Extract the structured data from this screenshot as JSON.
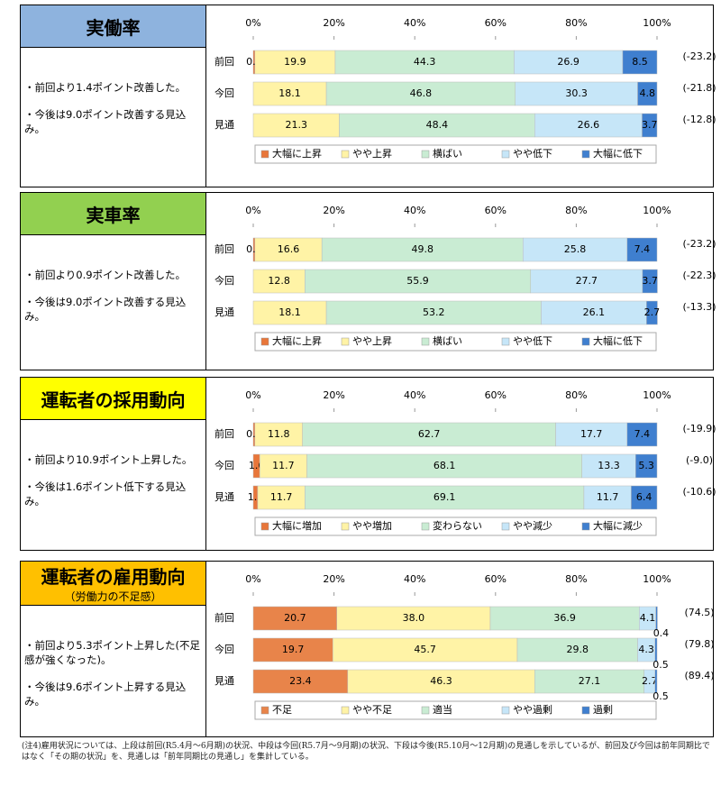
{
  "chart_data": [
    {
      "type": "bar",
      "orientation": "horizontal",
      "stacked": true,
      "title": "実働率",
      "header_color": "#8eb3de",
      "annotations": [
        "・前回より1.4ポイント改善した。",
        "・今後は9.0ポイント改善する見込み。"
      ],
      "categories": [
        "前回",
        "今回",
        "見通"
      ],
      "series": [
        {
          "name": "大幅に上昇",
          "color": "#e8763a",
          "values": [
            0.4,
            null,
            null
          ]
        },
        {
          "name": "やや上昇",
          "color": "#fff3a6",
          "values": [
            19.9,
            18.1,
            21.3
          ]
        },
        {
          "name": "横ばい",
          "color": "#c9ecd3",
          "values": [
            44.3,
            46.8,
            48.4
          ]
        },
        {
          "name": "やや低下",
          "color": "#c6e6f8",
          "values": [
            26.9,
            30.3,
            26.6
          ]
        },
        {
          "name": "大幅に低下",
          "color": "#3f7fcf",
          "values": [
            8.5,
            4.8,
            3.7
          ]
        }
      ],
      "di": {
        "values": [
          -23.2,
          -21.8,
          -12.8
        ],
        "value_labels": [
          "(-23.2)",
          "(-21.8)",
          "(-12.8)"
        ]
      },
      "xlim": [
        0,
        100
      ],
      "xticks": [
        {
          "value": 0,
          "label": "0%"
        },
        {
          "value": 20,
          "label": "20%"
        },
        {
          "value": 40,
          "label": "40%"
        },
        {
          "value": 60,
          "label": "60%"
        },
        {
          "value": 80,
          "label": "80%"
        },
        {
          "value": 100,
          "label": "100%"
        }
      ],
      "legend": "bottom"
    },
    {
      "type": "bar",
      "orientation": "horizontal",
      "stacked": true,
      "title": "実車率",
      "header_color": "#92d050",
      "annotations": [
        "・前回より0.9ポイント改善した。",
        "・今後は9.0ポイント改善する見込み。"
      ],
      "categories": [
        "前回",
        "今回",
        "見通"
      ],
      "series": [
        {
          "name": "大幅に上昇",
          "color": "#e8763a",
          "values": [
            0.4,
            null,
            null
          ]
        },
        {
          "name": "やや上昇",
          "color": "#fff3a6",
          "values": [
            16.6,
            12.8,
            18.1
          ]
        },
        {
          "name": "横ばい",
          "color": "#c9ecd3",
          "values": [
            49.8,
            55.9,
            53.2
          ]
        },
        {
          "name": "やや低下",
          "color": "#c6e6f8",
          "values": [
            25.8,
            27.7,
            26.1
          ]
        },
        {
          "name": "大幅に低下",
          "color": "#3f7fcf",
          "values": [
            7.4,
            3.7,
            2.7
          ]
        }
      ],
      "di": {
        "values": [
          -23.2,
          -22.3,
          -13.3
        ],
        "value_labels": [
          "(-23.2)",
          "(-22.3)",
          "(-13.3)"
        ]
      },
      "xlim": [
        0,
        100
      ],
      "xticks": [
        {
          "value": 0,
          "label": "0%"
        },
        {
          "value": 20,
          "label": "20%"
        },
        {
          "value": 40,
          "label": "40%"
        },
        {
          "value": 60,
          "label": "60%"
        },
        {
          "value": 80,
          "label": "80%"
        },
        {
          "value": 100,
          "label": "100%"
        }
      ],
      "legend": "bottom"
    },
    {
      "type": "bar",
      "orientation": "horizontal",
      "stacked": true,
      "title": "運転者の採用動向",
      "header_color": "#ffff00",
      "annotations": [
        "・前回より10.9ポイント上昇した。",
        "・今後は1.6ポイント低下する見込み。"
      ],
      "categories": [
        "前回",
        "今回",
        "見通"
      ],
      "series": [
        {
          "name": "大幅に増加",
          "color": "#e8763a",
          "values": [
            0.4,
            1.6,
            1.1
          ]
        },
        {
          "name": "やや増加",
          "color": "#fff3a6",
          "values": [
            11.8,
            11.7,
            11.7
          ]
        },
        {
          "name": "変わらない",
          "color": "#c9ecd3",
          "values": [
            62.7,
            68.1,
            69.1
          ]
        },
        {
          "name": "やや減少",
          "color": "#c6e6f8",
          "values": [
            17.7,
            13.3,
            11.7
          ]
        },
        {
          "name": "大幅に減少",
          "color": "#3f7fcf",
          "values": [
            7.4,
            5.3,
            6.4
          ]
        }
      ],
      "di": {
        "values": [
          -19.9,
          -9.0,
          -10.6
        ],
        "value_labels": [
          "(-19.9)",
          "(-9.0)",
          "(-10.6)"
        ]
      },
      "xlim": [
        0,
        100
      ],
      "xticks": [
        {
          "value": 0,
          "label": "0%"
        },
        {
          "value": 20,
          "label": "20%"
        },
        {
          "value": 40,
          "label": "40%"
        },
        {
          "value": 60,
          "label": "60%"
        },
        {
          "value": 80,
          "label": "80%"
        },
        {
          "value": 100,
          "label": "100%"
        }
      ],
      "legend": "bottom"
    },
    {
      "type": "bar",
      "orientation": "horizontal",
      "stacked": true,
      "title": "運転者の雇用動向",
      "subtitle": "（労働力の不足感）",
      "header_color": "#ffc000",
      "annotations": [
        "・前回より5.3ポイント上昇した(不足感が強くなった)。",
        "・今後は9.6ポイント上昇する見込み。"
      ],
      "categories": [
        "前回",
        "今回",
        "見通"
      ],
      "series": [
        {
          "name": "不足",
          "color": "#e8844a",
          "values": [
            20.7,
            19.7,
            23.4
          ]
        },
        {
          "name": "やや不足",
          "color": "#fff3a6",
          "values": [
            38.0,
            45.7,
            46.3
          ],
          "value_labels": [
            "38.0",
            "45.7",
            "46.3"
          ]
        },
        {
          "name": "適当",
          "color": "#c9ecd3",
          "values": [
            36.9,
            29.8,
            27.1
          ]
        },
        {
          "name": "やや過剰",
          "color": "#c6e6f8",
          "values": [
            4.1,
            4.3,
            2.7
          ]
        },
        {
          "name": "過剰",
          "color": "#3f7fcf",
          "values": [
            0.4,
            0.5,
            0.5
          ]
        }
      ],
      "di": {
        "values": [
          74.5,
          79.8,
          89.4
        ],
        "value_labels": [
          "(74.5)",
          "(79.8)",
          "(89.4)"
        ]
      },
      "xlim": [
        0,
        100
      ],
      "xticks": [
        {
          "value": 0,
          "label": "0%"
        },
        {
          "value": 20,
          "label": "20%"
        },
        {
          "value": 40,
          "label": "40%"
        },
        {
          "value": 60,
          "label": "60%"
        },
        {
          "value": 80,
          "label": "80%"
        },
        {
          "value": 100,
          "label": "100%"
        }
      ],
      "legend": "bottom"
    }
  ],
  "note": "(注4)雇用状況については、上段は前回(R5.4月～6月期)の状況、中段は今回(R5.7月～9月期)の状況、下段は今後(R5.10月～12月期)の見通しを示しているが、前回及び今回は前年同期比ではなく「その期の状況」を、見通しは「前年同期比の見通し」を集計している。"
}
